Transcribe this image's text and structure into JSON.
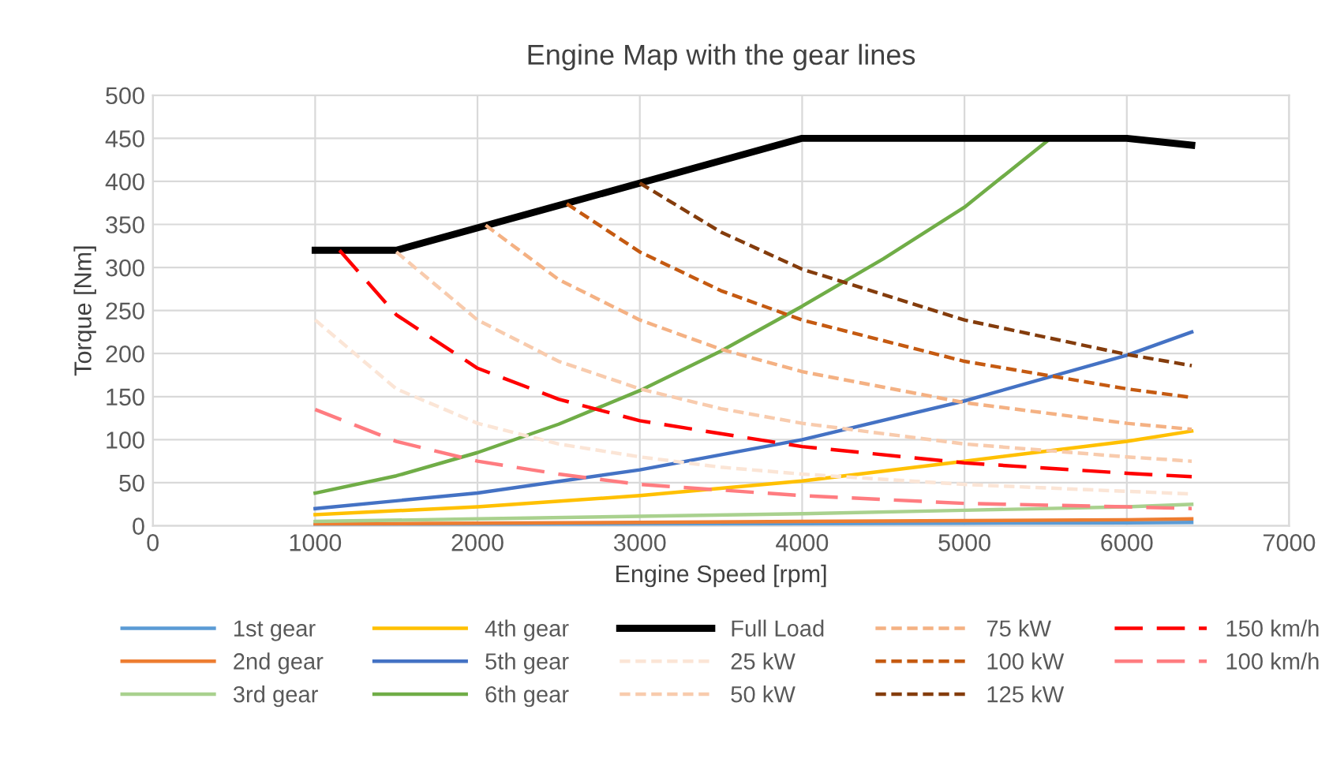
{
  "chart_data": {
    "type": "line",
    "title": "Engine Map with the gear lines",
    "xlabel": "Engine Speed [rpm]",
    "ylabel": "Torque [Nm]",
    "xlim": [
      0,
      7000
    ],
    "xticks": [
      0,
      1000,
      2000,
      3000,
      4000,
      5000,
      6000,
      7000
    ],
    "ylim": [
      0,
      500
    ],
    "yticks": [
      0,
      50,
      100,
      150,
      200,
      250,
      300,
      350,
      400,
      450,
      500
    ],
    "grid": true,
    "legend": "bottom",
    "line_style": "solid",
    "series": [
      {
        "name": "1st gear",
        "color": "#5b9bd5",
        "x": [
          1000,
          2000,
          3000,
          4000,
          5000,
          6000,
          6400
        ],
        "values": [
          1,
          1.5,
          2,
          2.5,
          3,
          3.5,
          4
        ]
      },
      {
        "name": "2nd gear",
        "color": "#ed7d31",
        "x": [
          1000,
          2000,
          3000,
          4000,
          5000,
          6000,
          6400
        ],
        "values": [
          2,
          3,
          4,
          5,
          6,
          7,
          8
        ]
      },
      {
        "name": "3rd gear",
        "color": "#a9d18e",
        "x": [
          1000,
          2000,
          3000,
          4000,
          5000,
          6000,
          6400
        ],
        "values": [
          5,
          8,
          11,
          14,
          18,
          22,
          25
        ]
      },
      {
        "name": "4th gear",
        "color": "#ffc000",
        "x": [
          1000,
          2000,
          3000,
          4000,
          5000,
          6000,
          6400
        ],
        "values": [
          13,
          22,
          35,
          52,
          75,
          98,
          110
        ]
      },
      {
        "name": "5th gear",
        "color": "#4472c4",
        "x": [
          1000,
          2000,
          3000,
          4000,
          5000,
          6000,
          6400
        ],
        "values": [
          20,
          38,
          65,
          100,
          145,
          198,
          225
        ]
      },
      {
        "name": "6th gear",
        "color": "#70ad47",
        "x": [
          1000,
          1500,
          2000,
          2500,
          3000,
          3500,
          4000,
          4500,
          5000,
          5530
        ],
        "values": [
          38,
          58,
          85,
          118,
          157,
          203,
          255,
          310,
          370,
          450
        ]
      },
      {
        "name": "Full Load",
        "color": "#000000",
        "x": [
          1000,
          1500,
          4000,
          6000,
          6400
        ],
        "values": [
          320,
          320,
          450,
          450,
          442
        ]
      },
      {
        "name": "25 kW",
        "color": "#fbe5d6",
        "line_style": "dotted",
        "x": [
          1000,
          1500,
          2000,
          2500,
          3000,
          3500,
          4000,
          5000,
          6000,
          6400
        ],
        "values": [
          239,
          159,
          119,
          95,
          80,
          68,
          60,
          48,
          40,
          37
        ]
      },
      {
        "name": "50 kW",
        "color": "#f8cbad",
        "line_style": "dotted",
        "x": [
          1500,
          2000,
          2500,
          3000,
          3500,
          4000,
          5000,
          6000,
          6400
        ],
        "values": [
          318,
          239,
          191,
          159,
          136,
          119,
          95,
          80,
          75
        ]
      },
      {
        "name": "75 kW",
        "color": "#f4b183",
        "line_style": "dotted",
        "x": [
          2050,
          2500,
          3000,
          3500,
          4000,
          5000,
          6000,
          6400
        ],
        "values": [
          349,
          286,
          239,
          205,
          179,
          143,
          119,
          112
        ]
      },
      {
        "name": "100 kW",
        "color": "#c55a11",
        "line_style": "dotted",
        "x": [
          2550,
          3000,
          3500,
          4000,
          5000,
          6000,
          6400
        ],
        "values": [
          374,
          318,
          273,
          239,
          191,
          159,
          149
        ]
      },
      {
        "name": "125 kW",
        "color": "#843c0c",
        "line_style": "dotted",
        "x": [
          3000,
          3500,
          4000,
          5000,
          6000,
          6400
        ],
        "values": [
          398,
          341,
          298,
          239,
          199,
          186
        ]
      },
      {
        "name": "150 km/h",
        "color": "#ff0000",
        "line_style": "dashed",
        "x": [
          1150,
          1500,
          2000,
          2500,
          3000,
          4000,
          5000,
          6000,
          6400
        ],
        "values": [
          320,
          245,
          183,
          147,
          122,
          92,
          73,
          61,
          57
        ]
      },
      {
        "name": "100 km/h",
        "color": "#ff7c80",
        "line_style": "dashed",
        "x": [
          1000,
          1500,
          2000,
          2500,
          3000,
          4000,
          5000,
          6000,
          6400
        ],
        "values": [
          135,
          98,
          75,
          60,
          48,
          35,
          26,
          22,
          20
        ]
      }
    ]
  }
}
